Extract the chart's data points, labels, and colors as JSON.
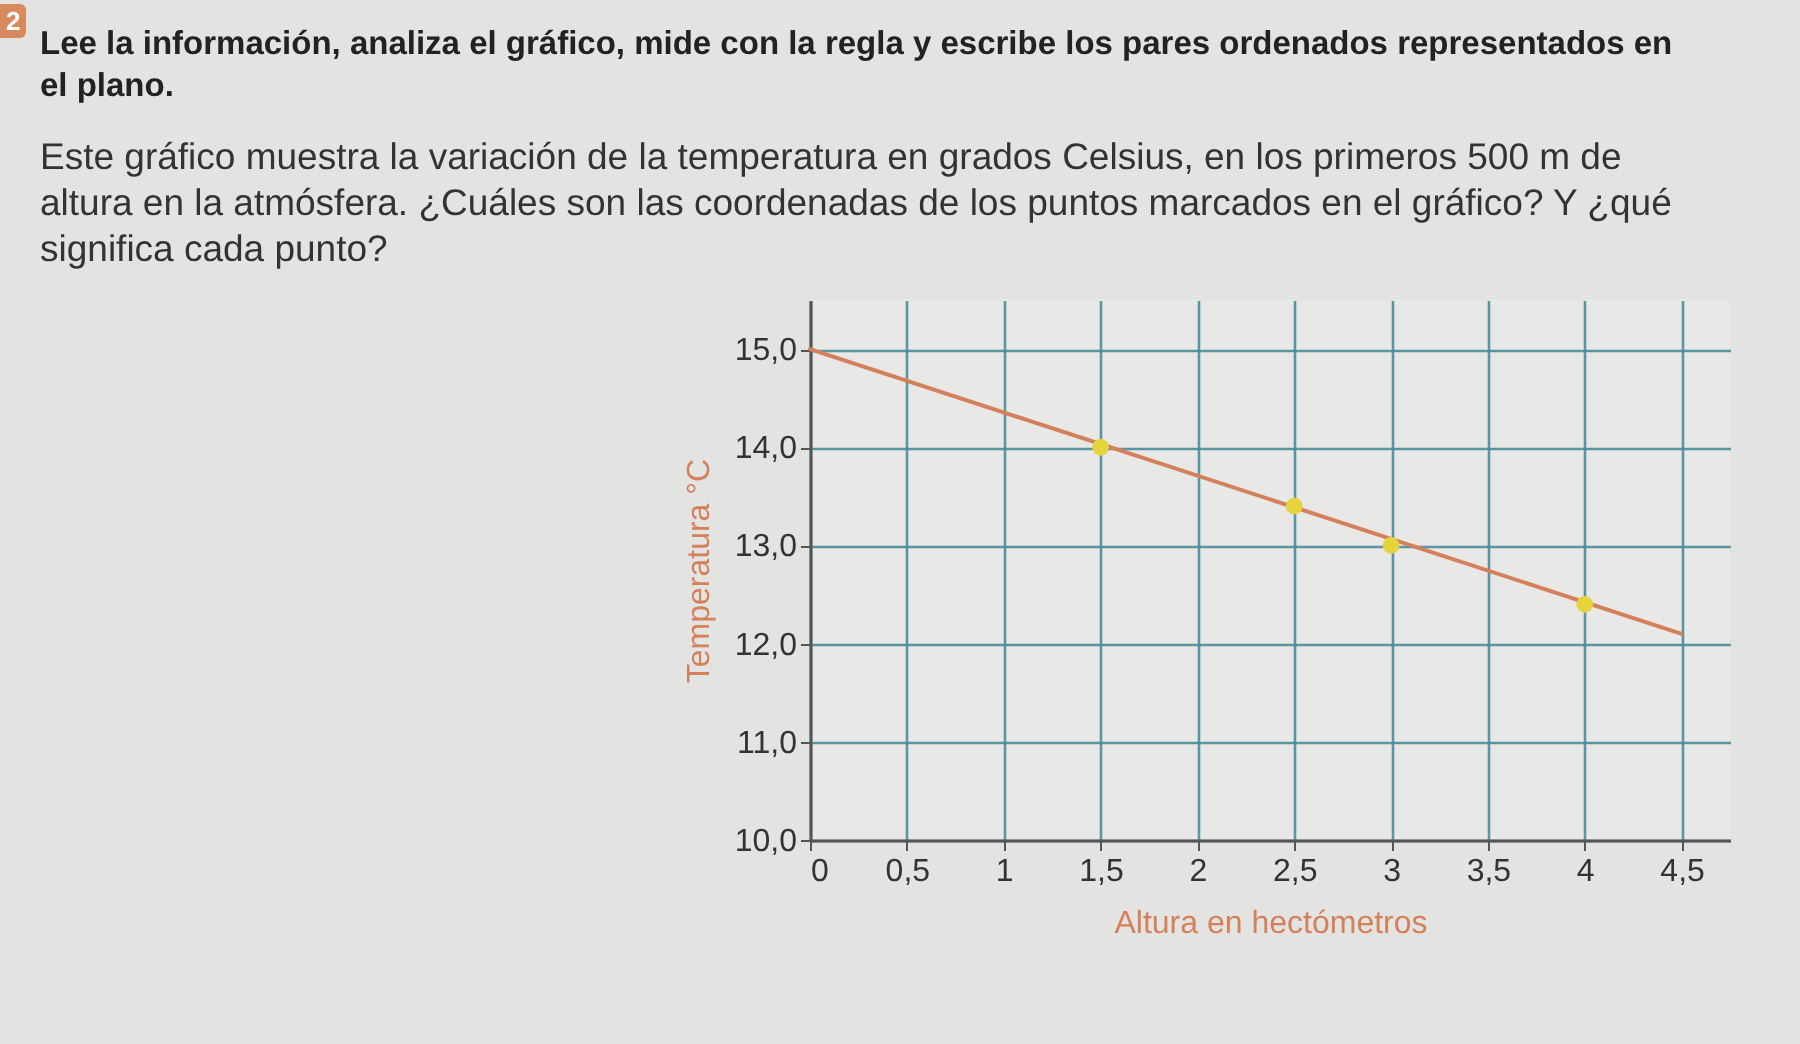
{
  "chart_data": {
    "type": "line",
    "title": "Lee la información, analiza el gráfico, mide con la regla y escribe los pares ordenados representados en el plano.",
    "subtitle": "Este gráfico muestra la variación de la temperatura en grados Celsius, en los primeros 500 m de altura en la atmósfera. ¿Cuáles son las coordenadas de los puntos marcados en el gráfico? Y ¿qué significa cada punto?",
    "xlabel": "Altura en hectómetros",
    "ylabel": "Temperatura °C",
    "annotations": [
      "2"
    ],
    "series": [
      {
        "color": "#d4805a",
        "x": [
          0,
          4.5
        ],
        "values": [
          15.0,
          12.1
        ]
      },
      {
        "type": "scatter",
        "color": "#e6d43c",
        "marker": "circle",
        "x": [
          1.5,
          2.5,
          3,
          4
        ],
        "values": [
          14.0,
          13.4,
          13.0,
          12.4
        ]
      }
    ],
    "xlim": [
      0,
      4.75
    ],
    "ylim": [
      10,
      15.5
    ],
    "xticks": [
      0,
      {
        "value": 0.5,
        "label": "0,5"
      },
      1,
      {
        "value": 1.5,
        "label": "1,5"
      },
      2,
      {
        "value": 2.5,
        "label": "2,5"
      },
      3,
      {
        "value": 3.5,
        "label": "3,5"
      },
      4,
      {
        "value": 4.5,
        "label": "4,5"
      }
    ],
    "yticks": [
      {
        "value": 10,
        "label": "10,0"
      },
      {
        "value": 11,
        "label": "11,0"
      },
      {
        "value": 12,
        "label": "12,0"
      },
      {
        "value": 13,
        "label": "13,0"
      },
      {
        "value": 14,
        "label": "14,0"
      },
      {
        "value": 15,
        "label": "15,0"
      }
    ],
    "grid": true
  }
}
